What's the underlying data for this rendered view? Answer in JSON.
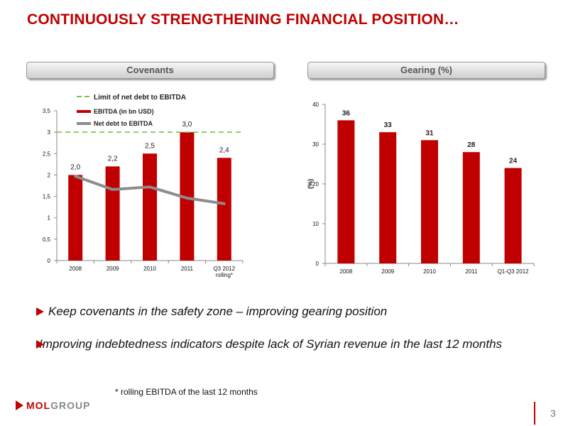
{
  "slide": {
    "title": "CONTINUOUSLY STRENGTHENING FINANCIAL POSITION…",
    "page_number": "3",
    "footnote": "* rolling EBITDA of the last 12 months",
    "logo": {
      "part1": "MOL",
      "part2": "GROUP"
    },
    "bullets": [
      "Keep covenants in the safety zone – improving gearing position",
      "Improving indebtedness indicators despite lack of Syrian revenue in the last 12 months"
    ]
  },
  "panels": {
    "left_title": "Covenants",
    "right_title": "Gearing (%)"
  },
  "colors": {
    "bar": "#c00000",
    "line": "#8c8c8c",
    "limit": "#7dc242",
    "title": "#c00000"
  },
  "chart_data": [
    {
      "type": "bar",
      "categories": [
        "2008",
        "2009",
        "2010",
        "2011",
        "Q3 2012 rolling*"
      ],
      "category_lines": [
        [
          "2008"
        ],
        [
          "2009"
        ],
        [
          "2010"
        ],
        [
          "2011"
        ],
        [
          "Q3 2012",
          "rolling*"
        ]
      ],
      "series": [
        {
          "name": "EBITDA (in bn USD)",
          "type": "bar",
          "values": [
            2.0,
            2.2,
            2.5,
            3.0,
            2.4
          ],
          "labels": [
            "2,0",
            "2,2",
            "2,5",
            "3,0",
            "2,4"
          ]
        },
        {
          "name": "Net debt to EBITDA",
          "type": "line",
          "values": [
            1.97,
            1.66,
            1.72,
            1.46,
            1.33
          ]
        },
        {
          "name": "Limit of net debt to EBITDA",
          "type": "line-dashed",
          "values": [
            3,
            3,
            3,
            3,
            3
          ]
        }
      ],
      "ylim": [
        0,
        3.5
      ],
      "yticks": [
        0,
        0.5,
        1,
        1.5,
        2,
        2.5,
        3,
        3.5
      ],
      "ytick_labels": [
        "0",
        "0,5",
        "1",
        "1,5",
        "2",
        "2,5",
        "3",
        "3,5"
      ],
      "legend": [
        "Limit of net debt to EBITDA",
        "EBITDA (in bn USD)",
        "Net debt to EBITDA"
      ],
      "legend_position": "top",
      "grid": false
    },
    {
      "type": "bar",
      "categories": [
        "2008",
        "2009",
        "2010",
        "2011",
        "Q1-Q3 2012"
      ],
      "values": [
        36,
        33,
        31,
        28,
        24
      ],
      "labels": [
        "36",
        "33",
        "31",
        "28",
        "24"
      ],
      "ylabel": "(%)",
      "ylim": [
        0,
        40
      ],
      "yticks": [
        0,
        10,
        20,
        30,
        40
      ],
      "grid": false
    }
  ]
}
